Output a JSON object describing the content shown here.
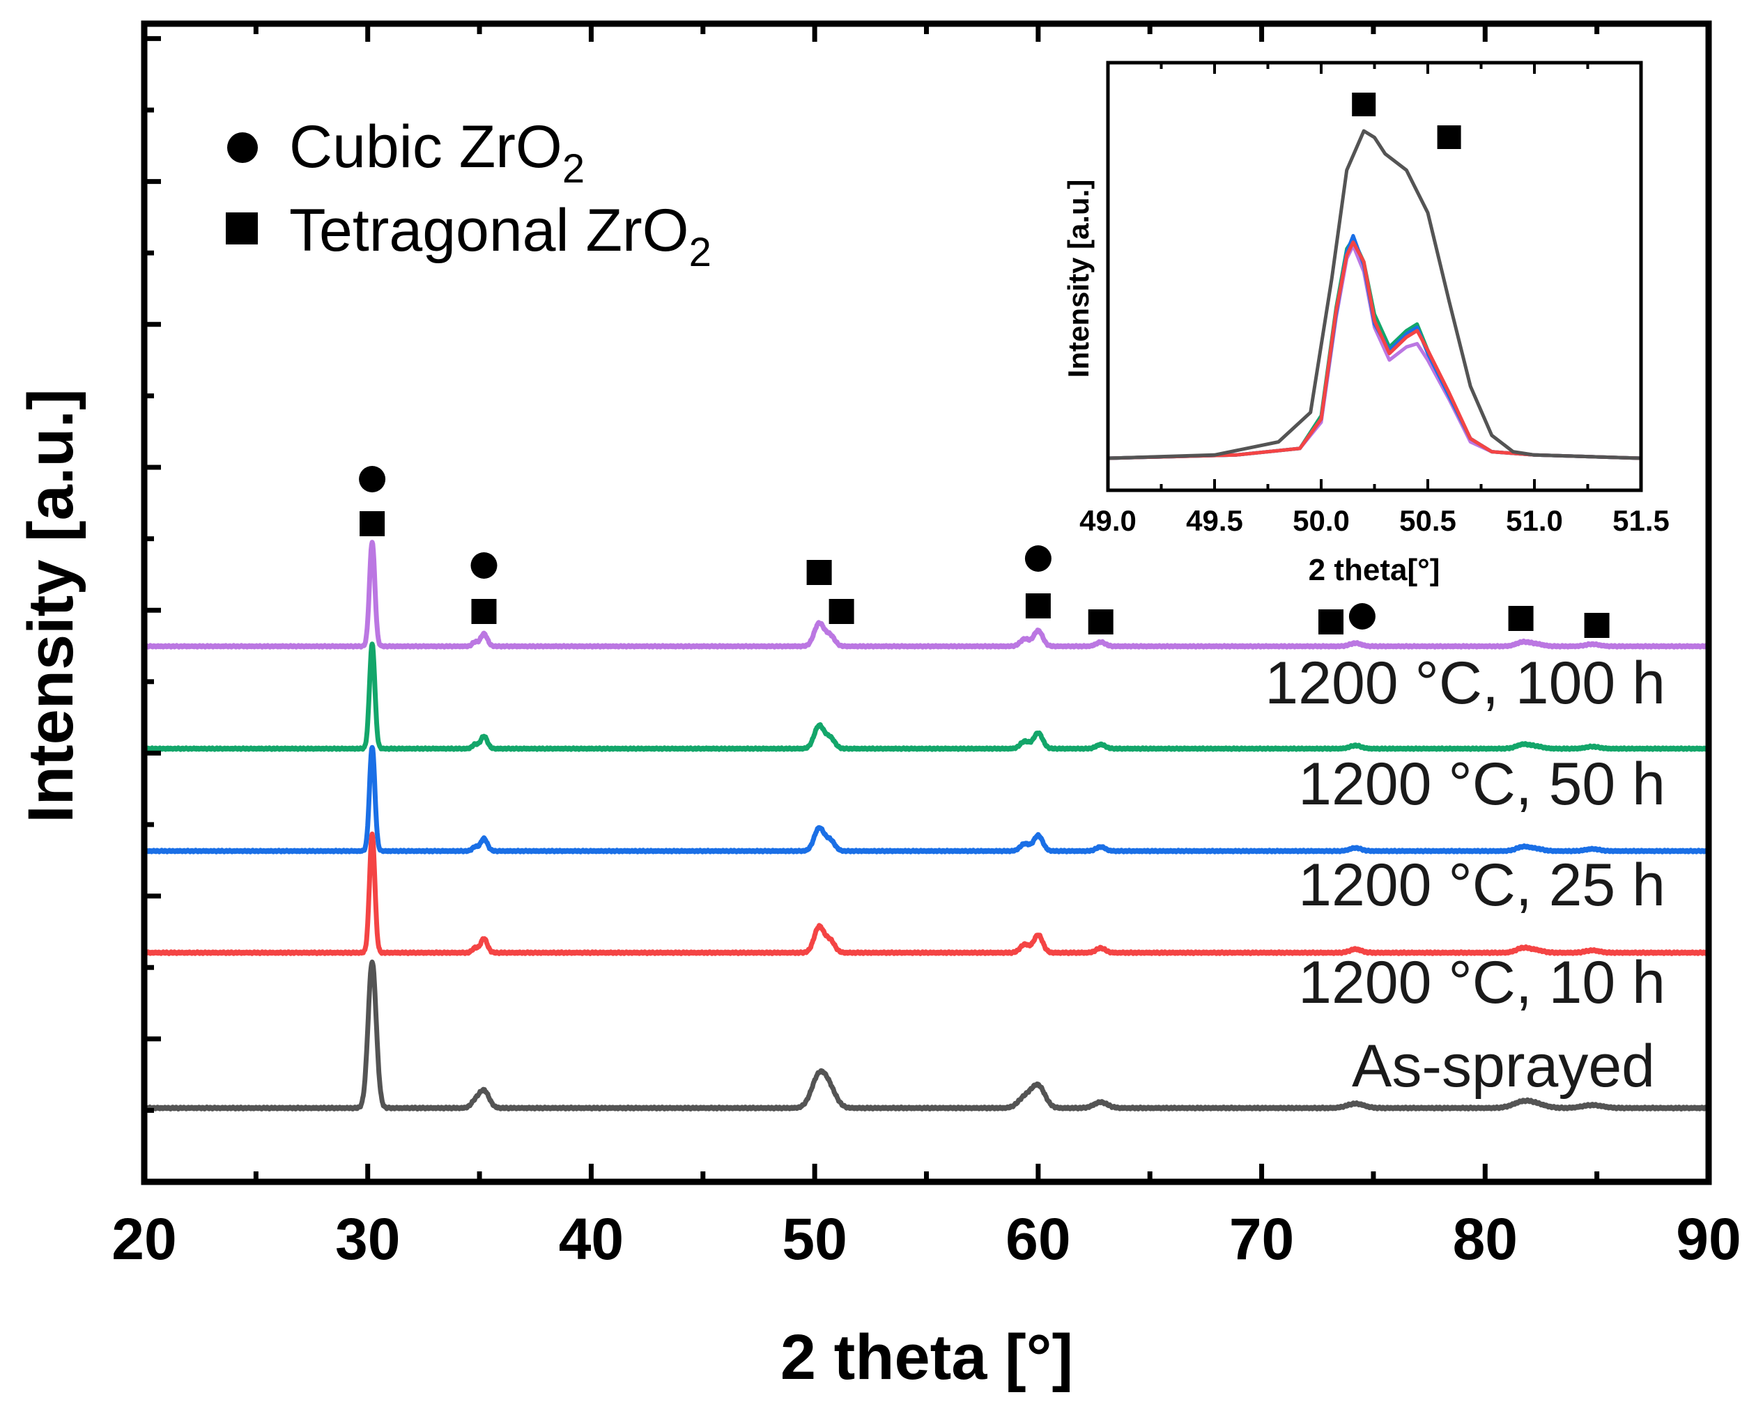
{
  "chart_data": [
    {
      "type": "line",
      "xlabel": "2 theta [°]",
      "ylabel": "Intensity [a.u.]",
      "xlim": [
        20,
        90
      ],
      "xticks": [
        "20",
        "30",
        "40",
        "50",
        "60",
        "70",
        "80",
        "90"
      ],
      "legend": {
        "placement": "top-left",
        "entries": [
          {
            "marker": "circle",
            "label": "Cubic ZrO",
            "sub": "2"
          },
          {
            "marker": "square",
            "label": "Tetragonal ZrO",
            "sub": "2"
          }
        ]
      },
      "peaks": [
        {
          "center": 30.2,
          "height": 1.0,
          "width": 0.12
        },
        {
          "center": 35.2,
          "height": 0.12,
          "width": 0.15
        },
        {
          "center": 34.8,
          "height": 0.04,
          "width": 0.12
        },
        {
          "center": 50.2,
          "height": 0.22,
          "width": 0.22
        },
        {
          "center": 50.7,
          "height": 0.1,
          "width": 0.2
        },
        {
          "center": 59.4,
          "height": 0.07,
          "width": 0.2
        },
        {
          "center": 60.0,
          "height": 0.15,
          "width": 0.2
        },
        {
          "center": 62.8,
          "height": 0.04,
          "width": 0.2
        },
        {
          "center": 74.2,
          "height": 0.03,
          "width": 0.25
        },
        {
          "center": 81.7,
          "height": 0.04,
          "width": 0.3
        },
        {
          "center": 82.3,
          "height": 0.02,
          "width": 0.3
        },
        {
          "center": 84.8,
          "height": 0.02,
          "width": 0.3
        }
      ],
      "series": [
        {
          "name": "As-sprayed",
          "color": "#545454",
          "baseline": 0.0,
          "scale": 1.0,
          "broaden": 1.5
        },
        {
          "name": "1200 °C, 10 h",
          "color": "#f44444",
          "baseline": 1.0,
          "scale": 0.85,
          "broaden": 1.0
        },
        {
          "name": "1200 °C, 25 h",
          "color": "#1a6fe6",
          "baseline": 1.7,
          "scale": 0.85,
          "broaden": 1.0
        },
        {
          "name": "1200 °C, 50 h",
          "color": "#13a66a",
          "baseline": 2.4,
          "scale": 0.85,
          "broaden": 1.0
        },
        {
          "name": "1200 °C, 100 h",
          "color": "#bb77e2",
          "baseline": 3.1,
          "scale": 0.85,
          "broaden": 1.0
        }
      ],
      "phase_markers": [
        {
          "x": 30.2,
          "marker": "circle",
          "level": 1
        },
        {
          "x": 30.2,
          "marker": "square",
          "level": 0
        },
        {
          "x": 35.2,
          "marker": "circle",
          "level": 1
        },
        {
          "x": 35.2,
          "marker": "square",
          "level": 0
        },
        {
          "x": 50.2,
          "marker": "square",
          "level": 1
        },
        {
          "x": 51.2,
          "marker": "square",
          "level": 0
        },
        {
          "x": 60.0,
          "marker": "circle",
          "level": 1
        },
        {
          "x": 60.0,
          "marker": "square",
          "level": 0
        },
        {
          "x": 62.8,
          "marker": "square",
          "level": 0
        },
        {
          "x": 73.1,
          "marker": "square",
          "level": 0
        },
        {
          "x": 74.5,
          "marker": "circle",
          "level": 0
        },
        {
          "x": 81.6,
          "marker": "square",
          "level": 0
        },
        {
          "x": 85.0,
          "marker": "square",
          "level": 0
        }
      ]
    },
    {
      "type": "line",
      "placement": "inset top-right",
      "xlabel": "2 theta[°]",
      "ylabel": "Intensity [a.u.]",
      "xlim": [
        49.0,
        51.5
      ],
      "xticks": [
        "49.0",
        "49.5",
        "50.0",
        "50.5",
        "51.0",
        "51.5"
      ],
      "series": [
        {
          "name": "As-sprayed",
          "color": "#545454",
          "x": [
            49.0,
            49.5,
            49.8,
            49.95,
            50.05,
            50.12,
            50.2,
            50.25,
            50.3,
            50.4,
            50.5,
            50.6,
            50.7,
            50.8,
            50.9,
            51.0,
            51.5
          ],
          "y": [
            0.0,
            0.01,
            0.05,
            0.14,
            0.55,
            0.88,
            1.0,
            0.98,
            0.93,
            0.88,
            0.75,
            0.48,
            0.22,
            0.07,
            0.02,
            0.01,
            0.0
          ]
        },
        {
          "name": "1200 °C, 10 h",
          "color": "#f44444",
          "x": [
            49.0,
            49.6,
            49.9,
            50.0,
            50.07,
            50.12,
            50.15,
            50.2,
            50.25,
            50.32,
            50.4,
            50.45,
            50.5,
            50.6,
            50.7,
            50.8,
            51.0,
            51.5
          ],
          "y": [
            0.0,
            0.01,
            0.03,
            0.12,
            0.45,
            0.62,
            0.66,
            0.6,
            0.42,
            0.32,
            0.37,
            0.39,
            0.33,
            0.2,
            0.06,
            0.02,
            0.01,
            0.0
          ]
        },
        {
          "name": "1200 °C, 25 h",
          "color": "#1a6fe6",
          "x": [
            49.0,
            49.6,
            49.9,
            50.0,
            50.07,
            50.12,
            50.15,
            50.2,
            50.25,
            50.32,
            50.4,
            50.45,
            50.5,
            50.6,
            50.7,
            50.8,
            51.0,
            51.5
          ],
          "y": [
            0.0,
            0.01,
            0.03,
            0.12,
            0.44,
            0.63,
            0.68,
            0.59,
            0.41,
            0.33,
            0.38,
            0.4,
            0.32,
            0.19,
            0.06,
            0.02,
            0.01,
            0.0
          ]
        },
        {
          "name": "1200 °C, 50 h",
          "color": "#13a66a",
          "x": [
            49.0,
            49.6,
            49.9,
            50.0,
            50.07,
            50.12,
            50.15,
            50.2,
            50.25,
            50.32,
            50.4,
            50.45,
            50.5,
            50.6,
            50.7,
            50.8,
            51.0,
            51.5
          ],
          "y": [
            0.0,
            0.01,
            0.03,
            0.13,
            0.46,
            0.64,
            0.67,
            0.6,
            0.44,
            0.34,
            0.39,
            0.41,
            0.33,
            0.19,
            0.06,
            0.02,
            0.01,
            0.0
          ]
        },
        {
          "name": "1200 °C, 100 h",
          "color": "#bb77e2",
          "x": [
            49.0,
            49.6,
            49.9,
            50.0,
            50.07,
            50.12,
            50.15,
            50.2,
            50.25,
            50.32,
            50.4,
            50.45,
            50.5,
            50.6,
            50.7,
            50.8,
            51.0,
            51.5
          ],
          "y": [
            0.0,
            0.01,
            0.03,
            0.11,
            0.43,
            0.61,
            0.65,
            0.57,
            0.4,
            0.3,
            0.34,
            0.35,
            0.3,
            0.18,
            0.05,
            0.02,
            0.01,
            0.0
          ]
        }
      ],
      "phase_markers": [
        {
          "x": 50.2,
          "marker": "square",
          "level": 1
        },
        {
          "x": 50.6,
          "marker": "square",
          "level": 0
        }
      ]
    }
  ]
}
